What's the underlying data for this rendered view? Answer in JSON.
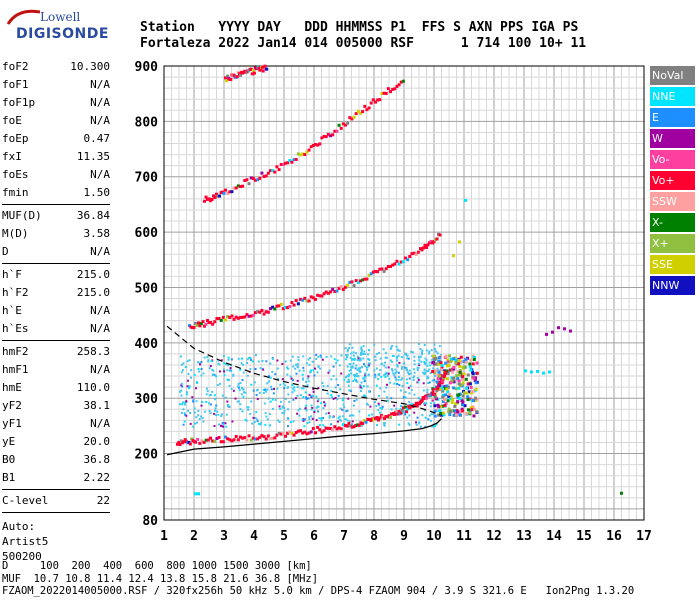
{
  "logo": {
    "line1": "Lowell",
    "line2": "DIGISONDE"
  },
  "header": {
    "line1": "Station   YYYY DAY   DDD HHMMSS P1  FFS S AXN PPS IGA PS",
    "line2": "Fortaleza 2022 Jan14 014 005000 RSF      1 714 100 10+ 11"
  },
  "params_groups": [
    [
      {
        "label": "foF2",
        "value": "10.300"
      },
      {
        "label": "foF1",
        "value": "N/A"
      },
      {
        "label": "foF1p",
        "value": "N/A"
      },
      {
        "label": "foE",
        "value": "N/A"
      },
      {
        "label": "foEp",
        "value": "0.47"
      },
      {
        "label": "fxI",
        "value": "11.35"
      },
      {
        "label": "foEs",
        "value": "N/A"
      },
      {
        "label": "fmin",
        "value": "1.50"
      }
    ],
    [
      {
        "label": "MUF(D)",
        "value": "36.84"
      },
      {
        "label": "M(D)",
        "value": "3.58"
      },
      {
        "label": "D",
        "value": "N/A"
      }
    ],
    [
      {
        "label": "h`F",
        "value": "215.0"
      },
      {
        "label": "h`F2",
        "value": "215.0"
      },
      {
        "label": "h`E",
        "value": "N/A"
      },
      {
        "label": "h`Es",
        "value": "N/A"
      }
    ],
    [
      {
        "label": "hmF2",
        "value": "258.3"
      },
      {
        "label": "hmF1",
        "value": "N/A"
      },
      {
        "label": "hmE",
        "value": "110.0"
      },
      {
        "label": "yF2",
        "value": "38.1"
      },
      {
        "label": "yF1",
        "value": "N/A"
      },
      {
        "label": "yE",
        "value": "20.0"
      },
      {
        "label": "B0",
        "value": "36.8"
      },
      {
        "label": "B1",
        "value": "2.22"
      }
    ],
    [
      {
        "label": "C-level",
        "value": "22"
      }
    ]
  ],
  "auto": {
    "line1": "Auto:",
    "line2": "Artist5",
    "line3": "500200"
  },
  "legend": [
    {
      "label": "NoVal",
      "color": "#808080"
    },
    {
      "label": "NNE",
      "color": "#00e5ff"
    },
    {
      "label": "E",
      "color": "#1e8fff"
    },
    {
      "label": "W",
      "color": "#a000a0"
    },
    {
      "label": "Vo-",
      "color": "#ff3fa0"
    },
    {
      "label": "Vo+",
      "color": "#ff0030"
    },
    {
      "label": "SSW",
      "color": "#ffa0a0"
    },
    {
      "label": "X-",
      "color": "#008000"
    },
    {
      "label": "X+",
      "color": "#90c040"
    },
    {
      "label": "SSE",
      "color": "#d0d000"
    },
    {
      "label": "NNW",
      "color": "#1010c0"
    }
  ],
  "chart_data": {
    "type": "scatter",
    "xlim": [
      1,
      17
    ],
    "ylim": [
      80,
      900
    ],
    "x_ticks": [
      "1",
      "2",
      "3",
      "4",
      "5",
      "6",
      "7",
      "8",
      "9",
      "10",
      "11",
      "12",
      "13",
      "14",
      "15",
      "16",
      "17"
    ],
    "y_ticks": [
      {
        "value": 80,
        "label": "80"
      },
      {
        "value": 200,
        "label": "200"
      },
      {
        "value": 300,
        "label": "300"
      },
      {
        "value": 400,
        "label": "400"
      },
      {
        "value": 500,
        "label": "500"
      },
      {
        "value": 600,
        "label": "600"
      },
      {
        "value": 700,
        "label": "700"
      },
      {
        "value": 800,
        "label": "800"
      },
      {
        "value": 900,
        "label": "900"
      }
    ],
    "grid": true,
    "traces": [
      {
        "name": "O-trace",
        "color": "#ff0030",
        "x": [
          1.4,
          2.0,
          3.0,
          4.0,
          5.0,
          6.0,
          7.0,
          7.8,
          8.5,
          9.0,
          9.5,
          9.9,
          10.2,
          10.35
        ],
        "y": [
          222,
          225,
          228,
          232,
          237,
          245,
          252,
          262,
          272,
          282,
          296,
          312,
          330,
          355
        ]
      },
      {
        "name": "2-hop",
        "color": "#ff0030",
        "x": [
          1.8,
          2.5,
          3.5,
          4.5,
          5.5,
          6.5,
          7.5,
          8.5,
          9.5,
          10.2
        ],
        "y": [
          432,
          440,
          450,
          462,
          477,
          495,
          515,
          540,
          570,
          600
        ]
      },
      {
        "name": "3-hop",
        "color": "#ff0030",
        "x": [
          2.3,
          3.0,
          4.0,
          5.0,
          6.0,
          7.0,
          8.0,
          9.0
        ],
        "y": [
          660,
          675,
          700,
          725,
          760,
          800,
          840,
          880
        ]
      },
      {
        "name": "4-hop",
        "color": "#ff0030",
        "x": [
          3.0,
          3.5,
          4.0,
          4.4
        ],
        "y": [
          880,
          888,
          895,
          900
        ]
      }
    ],
    "profile_line": {
      "x": [
        1.1,
        2,
        3,
        4,
        5,
        6,
        7,
        8,
        9,
        9.6,
        9.9,
        10.1,
        10.25
      ],
      "y": [
        198,
        208,
        212,
        217,
        222,
        227,
        232,
        236,
        241,
        245,
        250,
        255,
        263
      ]
    },
    "dashed_line": {
      "x": [
        1.1,
        2,
        3,
        4,
        5,
        6,
        7,
        8,
        9,
        9.5,
        9.9,
        10.2
      ],
      "y": [
        430,
        390,
        365,
        345,
        330,
        318,
        308,
        298,
        290,
        283,
        276,
        270
      ]
    },
    "extra_points": [
      {
        "x": [
          2.0,
          2.1
        ],
        "y": [
          130,
          130
        ],
        "color": "#00e5ff"
      },
      {
        "x": [
          16.2
        ],
        "y": [
          131
        ],
        "color": "#008000"
      },
      {
        "x": [
          13.0,
          13.2,
          13.4,
          13.6,
          13.8
        ],
        "y": [
          352,
          350,
          351,
          348,
          350
        ],
        "color": "#00e5ff"
      },
      {
        "x": [
          13.7,
          13.9,
          14.1,
          14.3,
          14.5
        ],
        "y": [
          418,
          422,
          430,
          428,
          424
        ],
        "color": "#a000a0"
      },
      {
        "x": [
          10.6,
          10.8
        ],
        "y": [
          560,
          585
        ],
        "color": "#d0d000"
      },
      {
        "x": [
          11.0
        ],
        "y": [
          660
        ],
        "color": "#00e5ff"
      }
    ]
  },
  "bottom": {
    "line1": "D     100  200  400  600  800 1000 1500 3000 [km]",
    "line2": "MUF  10.7 10.8 11.4 12.4 13.8 15.8 21.6 36.8 [MHz]",
    "line3": "FZAOM_2022014005000.RSF / 320fx256h 50 kHz 5.0 km / DPS-4 FZAOM 904 / 3.9 S 321.6 E   Ion2Png 1.3.20"
  }
}
